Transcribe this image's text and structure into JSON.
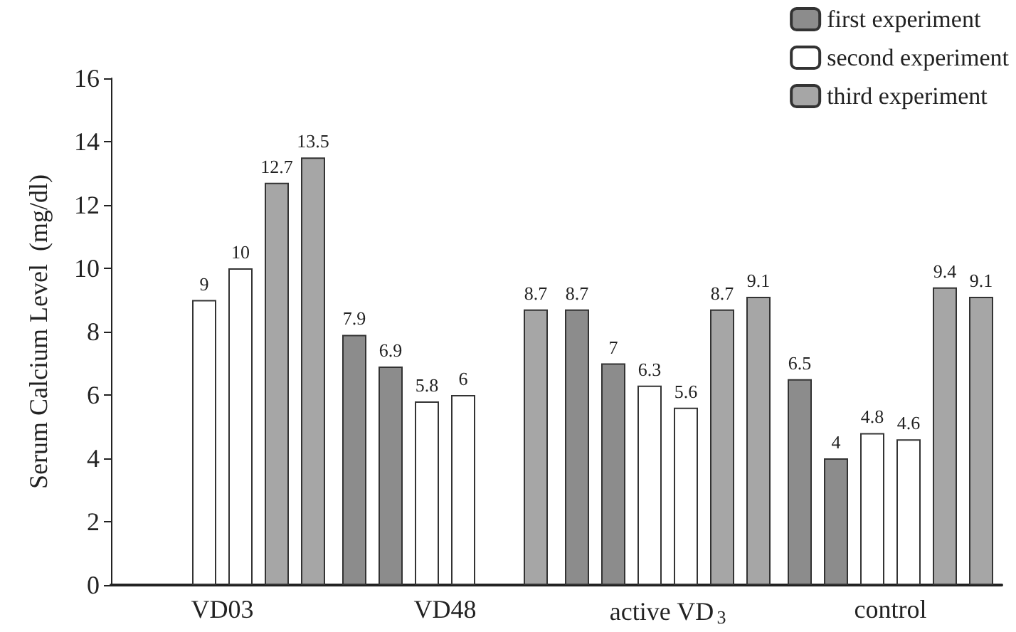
{
  "chart_data": {
    "type": "bar",
    "ylabel": "Serum Calcium Level  (mg/dl)",
    "categories": [
      "VD03",
      "VD48",
      "active VD$_{3}$",
      "control"
    ],
    "series": [
      {
        "name": "first experiment",
        "color": "#8c8c8c",
        "values": [
          null,
          7.9,
          8.7,
          6.5
        ]
      },
      {
        "color": "#8c8c8c",
        "values": [
          null,
          6.9,
          7,
          4
        ]
      },
      {
        "name": "second experiment",
        "color": "#ffffff",
        "values": [
          9,
          5.8,
          6.3,
          4.8
        ]
      },
      {
        "color": "#ffffff",
        "values": [
          10,
          6,
          5.6,
          4.6
        ]
      },
      {
        "name": "third experiment",
        "color": "#a6a6a6",
        "values": [
          12.7,
          null,
          8.7,
          9.4
        ]
      },
      {
        "color": "#a6a6a6",
        "values": [
          13.5,
          8.7,
          9.1,
          9.1
        ]
      }
    ],
    "ylim": [
      0,
      16
    ],
    "yticks": [
      0,
      2,
      4,
      6,
      8,
      10,
      12,
      14,
      16
    ],
    "data_labels": true,
    "grid": false,
    "legend": "top right"
  }
}
